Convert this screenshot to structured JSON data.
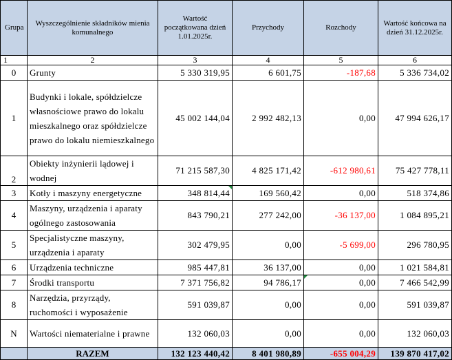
{
  "header": {
    "group": "Grupa",
    "name": "Wyszczególnienie składników mienia komunalnego",
    "start_value": "Wartość początkowana dzień 1.01.2025r.",
    "income": "Przychody",
    "expenses": "Rozchody",
    "end_value": "Wartość końcowa na dzień 31.12.2025r."
  },
  "column_numbers": [
    "1",
    "2",
    "3",
    "4",
    "5",
    "6"
  ],
  "rows": [
    {
      "group": "0",
      "name": "Grunty",
      "start": "5 330 319,95",
      "income": "6 601,75",
      "expenses": "-187,68",
      "end": "5 336 734,02"
    },
    {
      "group": "1",
      "name": "Budynki i lokale, spółdzielcze własnościowe prawo do lokalu mieszkalnego oraz spółdzielcze prawo do lokalu niemieszkalnego",
      "start": "45 002 144,04",
      "income": "2 992 482,13",
      "expenses": "0,00",
      "end": "47 994 626,17"
    },
    {
      "group": "2",
      "name": "Obiekty inżynierii lądowej i wodnej",
      "start": "71 215 587,30",
      "income": "4 825 171,42",
      "expenses": "-612 980,61",
      "end": "75 427 778,11"
    },
    {
      "group": "3",
      "name": "Kotły i maszyny energetyczne",
      "start": "348 814,44",
      "income": "169 560,42",
      "expenses": "0,00",
      "end": "518 374,86"
    },
    {
      "group": "4",
      "name": "Maszyny, urządzenia i aparaty ogólnego zastosowania",
      "start": "843 790,21",
      "income": "277 242,00",
      "expenses": "-36 137,00",
      "end": "1 084 895,21"
    },
    {
      "group": "5",
      "name": "Specjalistyczne maszyny, urządzenia i aparaty",
      "start": "302 479,95",
      "income": "0,00",
      "expenses": "-5 699,00",
      "end": "296 780,95"
    },
    {
      "group": "6",
      "name": "Urządzenia techniczne",
      "start": "985 447,81",
      "income": "36 137,00",
      "expenses": "0,00",
      "end": "1 021 584,81"
    },
    {
      "group": "7",
      "name": "Środki transportu",
      "start": "7 371 756,82",
      "income": "94 786,17",
      "expenses": "0,00",
      "end": "7 466 542,99"
    },
    {
      "group": "8",
      "name": "Narzędzia, przyrządy, ruchomości i wyposażenie",
      "start": "591 039,87",
      "income": "0,00",
      "expenses": "0,00",
      "end": "591 039,87"
    },
    {
      "group": "N",
      "name": "Wartości niematerialne i prawne",
      "start": "132 060,03",
      "income": "0,00",
      "expenses": "0,00",
      "end": "132 060,03"
    }
  ],
  "total": {
    "label": "RAZEM",
    "start": "132 123 440,42",
    "income": "8 401 980,89",
    "expenses": "-655 004,29",
    "end": "139 870 417,02"
  },
  "colors": {
    "header_fill": "#c5d3e6",
    "negative_text": "#ff0000",
    "cell_marker": "#1f8a3e"
  }
}
